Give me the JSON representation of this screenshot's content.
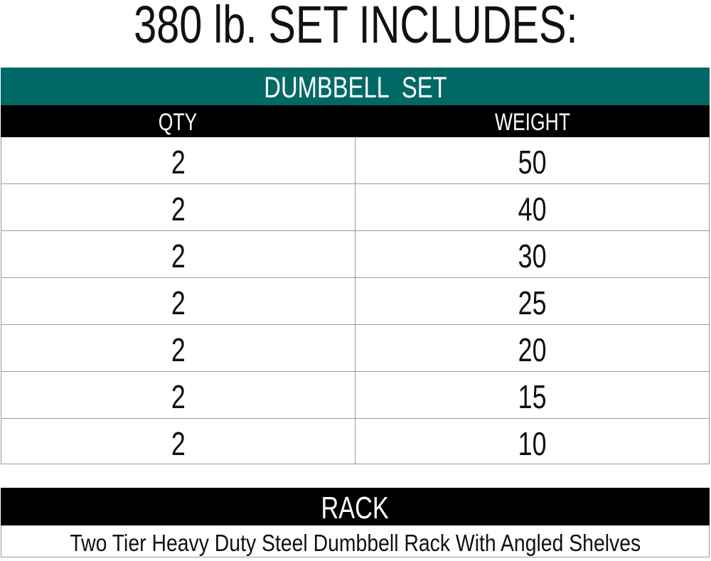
{
  "title": "380 lb. SET INCLUDES:",
  "dumbbell_set": {
    "heading": "DUMBBELL  SET",
    "columns": [
      "QTY",
      "WEIGHT"
    ],
    "rows": [
      {
        "qty": "2",
        "weight": "50"
      },
      {
        "qty": "2",
        "weight": "40"
      },
      {
        "qty": "2",
        "weight": "30"
      },
      {
        "qty": "2",
        "weight": "25"
      },
      {
        "qty": "2",
        "weight": "20"
      },
      {
        "qty": "2",
        "weight": "15"
      },
      {
        "qty": "2",
        "weight": "10"
      }
    ]
  },
  "rack": {
    "heading": "RACK",
    "description": "Two Tier Heavy Duty Steel Dumbbell Rack With Angled Shelves"
  },
  "colors": {
    "accent": "#006966",
    "header": "#000000"
  }
}
